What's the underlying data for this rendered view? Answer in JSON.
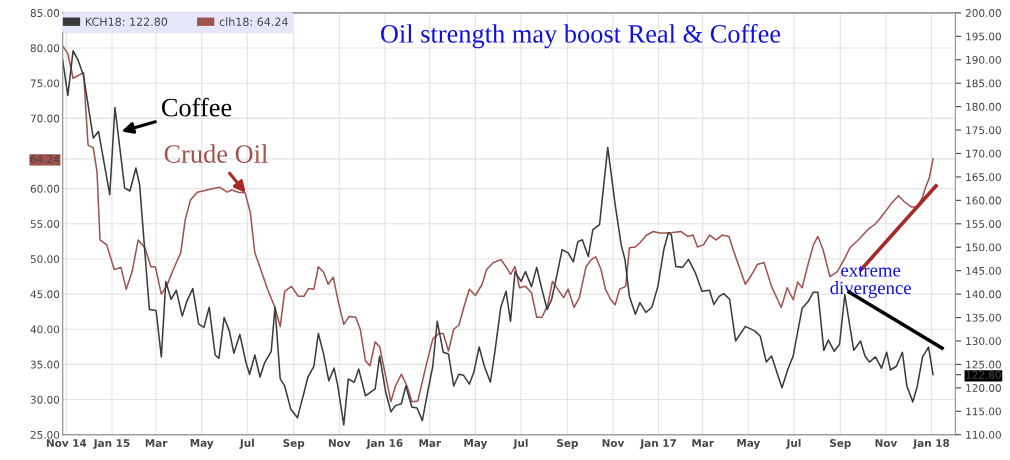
{
  "chart_data": {
    "type": "line",
    "title": "Oil strength may boost Real & Coffee",
    "annotations": [
      "Coffee",
      "Crude Oil",
      "extreme\ndivergence"
    ],
    "legend": "top left",
    "grid": true,
    "xlim": [
      "2014-10-27",
      "2018-02-02"
    ],
    "xticks": [
      {
        "value": "2014-11-01",
        "label": "Nov 14"
      },
      {
        "value": "2015-01-01",
        "label": "Jan 15"
      },
      {
        "value": "2015-03-01",
        "label": "Mar"
      },
      {
        "value": "2015-05-01",
        "label": "May"
      },
      {
        "value": "2015-07-01",
        "label": "Jul"
      },
      {
        "value": "2015-09-01",
        "label": "Sep"
      },
      {
        "value": "2015-11-01",
        "label": "Nov"
      },
      {
        "value": "2016-01-01",
        "label": "Jan 16"
      },
      {
        "value": "2016-03-01",
        "label": "Mar"
      },
      {
        "value": "2016-05-01",
        "label": "May"
      },
      {
        "value": "2016-07-01",
        "label": "Jul"
      },
      {
        "value": "2016-09-01",
        "label": "Sep"
      },
      {
        "value": "2016-11-01",
        "label": "Nov"
      },
      {
        "value": "2017-01-01",
        "label": "Jan 17"
      },
      {
        "value": "2017-03-01",
        "label": "Mar"
      },
      {
        "value": "2017-05-01",
        "label": "May"
      },
      {
        "value": "2017-07-01",
        "label": "Jul"
      },
      {
        "value": "2017-09-01",
        "label": "Sep"
      },
      {
        "value": "2017-11-01",
        "label": "Nov"
      },
      {
        "value": "2018-01-01",
        "label": "Jan 18"
      }
    ],
    "ylim": [
      25,
      85
    ],
    "yticks": [
      {
        "value": 25,
        "label": "25.00"
      },
      {
        "value": 30,
        "label": "30.00"
      },
      {
        "value": 35,
        "label": "35.00"
      },
      {
        "value": 40,
        "label": "40.00"
      },
      {
        "value": 45,
        "label": "45.00"
      },
      {
        "value": 50,
        "label": "50.00"
      },
      {
        "value": 55,
        "label": "55.00"
      },
      {
        "value": 60,
        "label": "60.00"
      },
      {
        "value": 64.24,
        "label": "64.24"
      },
      {
        "value": 70,
        "label": "70.00"
      },
      {
        "value": 75,
        "label": "75.00"
      },
      {
        "value": 80,
        "label": "80.00"
      },
      {
        "value": 85,
        "label": "85.00"
      }
    ],
    "y2lim": [
      110,
      200
    ],
    "y2ticks": [
      {
        "value": 110,
        "label": "110.00"
      },
      {
        "value": 115,
        "label": "115.00"
      },
      {
        "value": 120,
        "label": "120.00"
      },
      {
        "value": 122.8,
        "label": "122.80"
      },
      {
        "value": 125,
        "label": "125.00"
      },
      {
        "value": 130,
        "label": "130.00"
      },
      {
        "value": 135,
        "label": "135.00"
      },
      {
        "value": 140,
        "label": "140.00"
      },
      {
        "value": 145,
        "label": "145.00"
      },
      {
        "value": 150,
        "label": "150.00"
      },
      {
        "value": 155,
        "label": "155.00"
      },
      {
        "value": 160,
        "label": "160.00"
      },
      {
        "value": 165,
        "label": "165.00"
      },
      {
        "value": 170,
        "label": "170.00"
      },
      {
        "value": 175,
        "label": "175.00"
      },
      {
        "value": 180,
        "label": "180.00"
      },
      {
        "value": 185,
        "label": "185.00"
      },
      {
        "value": 190,
        "label": "190.00"
      },
      {
        "value": 195,
        "label": "195.00"
      },
      {
        "value": 200,
        "label": "200.00"
      }
    ],
    "series": [
      {
        "name": "KCH18: 122.80",
        "color": "#3a3a3a",
        "axis": "y2",
        "x": [
          "2014-10-27",
          "2014-11-03",
          "2014-11-10",
          "2014-11-17",
          "2014-11-24",
          "2014-12-07",
          "2014-12-14",
          "2014-12-29",
          "2015-01-05",
          "2015-01-18",
          "2015-01-25",
          "2015-02-02",
          "2015-02-07",
          "2015-02-20",
          "2015-03-01",
          "2015-03-08",
          "2015-03-14",
          "2015-03-21",
          "2015-03-28",
          "2015-04-05",
          "2015-04-11",
          "2015-04-19",
          "2015-04-27",
          "2015-05-04",
          "2015-05-11",
          "2015-05-19",
          "2015-05-24",
          "2015-05-31",
          "2015-06-07",
          "2015-06-13",
          "2015-06-21",
          "2015-06-29",
          "2015-07-04",
          "2015-07-11",
          "2015-07-18",
          "2015-07-24",
          "2015-08-02",
          "2015-08-07",
          "2015-08-14",
          "2015-08-20",
          "2015-08-28",
          "2015-09-06",
          "2015-09-15",
          "2015-09-20",
          "2015-09-28",
          "2015-10-04",
          "2015-10-11",
          "2015-10-18",
          "2015-10-25",
          "2015-10-30",
          "2015-11-07",
          "2015-11-13",
          "2015-11-21",
          "2015-11-27",
          "2015-12-06",
          "2015-12-19",
          "2015-12-25",
          "2016-01-02",
          "2016-01-09",
          "2016-01-15",
          "2016-01-23",
          "2016-01-29",
          "2016-02-06",
          "2016-02-13",
          "2016-02-20",
          "2016-02-28",
          "2016-03-05",
          "2016-03-11",
          "2016-03-19",
          "2016-03-26",
          "2016-04-02",
          "2016-04-09",
          "2016-04-15",
          "2016-04-23",
          "2016-04-29",
          "2016-05-06",
          "2016-05-13",
          "2016-05-21",
          "2016-05-27",
          "2016-06-04",
          "2016-06-11",
          "2016-06-17",
          "2016-06-23",
          "2016-07-01",
          "2016-07-07",
          "2016-07-15",
          "2016-07-22",
          "2016-07-29",
          "2016-08-05",
          "2016-08-11",
          "2016-08-19",
          "2016-08-25",
          "2016-09-02",
          "2016-09-09",
          "2016-09-15",
          "2016-09-21",
          "2016-09-29",
          "2016-10-05",
          "2016-10-14",
          "2016-10-25",
          "2016-11-04",
          "2016-11-12",
          "2016-11-17",
          "2016-11-23",
          "2016-12-01",
          "2016-12-07",
          "2016-12-15",
          "2016-12-23",
          "2016-12-31",
          "2017-01-08",
          "2017-01-14",
          "2017-01-18",
          "2017-01-24",
          "2017-02-02",
          "2017-02-10",
          "2017-02-19",
          "2017-02-28",
          "2017-03-10",
          "2017-03-16",
          "2017-03-23",
          "2017-03-29",
          "2017-04-06",
          "2017-04-14",
          "2017-04-27",
          "2017-05-10",
          "2017-05-17",
          "2017-05-25",
          "2017-06-01",
          "2017-06-15",
          "2017-06-23",
          "2017-06-30",
          "2017-07-12",
          "2017-07-20",
          "2017-07-27",
          "2017-08-02",
          "2017-08-10",
          "2017-08-16",
          "2017-08-24",
          "2017-08-31",
          "2017-09-07",
          "2017-09-19",
          "2017-09-28",
          "2017-10-04",
          "2017-10-10",
          "2017-10-18",
          "2017-10-26",
          "2017-11-02",
          "2017-11-07",
          "2017-11-15",
          "2017-11-23",
          "2017-11-29",
          "2017-12-07",
          "2017-12-13",
          "2017-12-20",
          "2017-12-28",
          "2018-01-03"
        ],
        "values": [
          190,
          182.4,
          191.9,
          189.8,
          186.6,
          173.3,
          174.7,
          161.2,
          179.8,
          162.6,
          162,
          166.9,
          163.3,
          136.7,
          136.5,
          126.6,
          142.7,
          138.9,
          140.8,
          135.3,
          138.4,
          141.2,
          133.6,
          132.9,
          137.2,
          127,
          126.3,
          135,
          132.1,
          127.4,
          131.4,
          125.5,
          122.9,
          127,
          122.3,
          125.3,
          127.8,
          137.2,
          121.9,
          120.4,
          115.5,
          113.6,
          119.1,
          122.3,
          124.6,
          131.6,
          127.2,
          121.5,
          124.2,
          120.4,
          112.1,
          121.9,
          121.2,
          124,
          118.3,
          119.8,
          126.8,
          119.1,
          114.9,
          116.2,
          116.6,
          120.4,
          115.9,
          115.7,
          113,
          119.8,
          124.6,
          134.2,
          127.6,
          127.2,
          120.4,
          122.9,
          122.7,
          120.8,
          123.4,
          128.7,
          124.6,
          121.2,
          127.6,
          137.2,
          140.6,
          134.2,
          144.8,
          142.7,
          144.8,
          141.6,
          145.7,
          141,
          136.7,
          138.9,
          144.8,
          149.5,
          148.8,
          146.9,
          151.2,
          151.6,
          148,
          153.7,
          154.8,
          171.3,
          159,
          150.5,
          147.4,
          139.5,
          135.7,
          138.2,
          136.1,
          137.2,
          141.6,
          149.5,
          153.1,
          152.7,
          145.9,
          145.7,
          147.4,
          144.6,
          140.6,
          140.8,
          137.8,
          139.5,
          140.1,
          138.9,
          130,
          133.1,
          132.1,
          131,
          125.5,
          126.8,
          120,
          124,
          126.8,
          137,
          138.4,
          140.4,
          140.4,
          128,
          130.2,
          127.8,
          129.3,
          139.9,
          128,
          130,
          126.8,
          125.5,
          126.6,
          124.2,
          127.6,
          123.8,
          124.6,
          127.6,
          120.4,
          117,
          120.4,
          126.6,
          128.7,
          122.8
        ]
      },
      {
        "name": "clh18: 64.24",
        "color": "#a0524f",
        "x": [
          "2014-10-27",
          "2014-11-03",
          "2014-11-10",
          "2014-11-24",
          "2014-11-30",
          "2014-12-07",
          "2014-12-12",
          "2014-12-16",
          "2014-12-25",
          "2015-01-04",
          "2015-01-13",
          "2015-01-20",
          "2015-01-28",
          "2015-02-05",
          "2015-02-14",
          "2015-02-22",
          "2015-02-28",
          "2015-03-08",
          "2015-03-15",
          "2015-03-24",
          "2015-04-03",
          "2015-04-09",
          "2015-04-16",
          "2015-04-25",
          "2015-05-08",
          "2015-05-25",
          "2015-06-04",
          "2015-06-10",
          "2015-06-19",
          "2015-06-28",
          "2015-07-05",
          "2015-07-11",
          "2015-07-19",
          "2015-07-28",
          "2015-08-07",
          "2015-08-14",
          "2015-08-20",
          "2015-08-29",
          "2015-09-07",
          "2015-09-15",
          "2015-09-21",
          "2015-09-28",
          "2015-10-04",
          "2015-10-11",
          "2015-10-17",
          "2015-10-24",
          "2015-10-30",
          "2015-11-07",
          "2015-11-14",
          "2015-11-23",
          "2015-11-29",
          "2015-12-06",
          "2015-12-12",
          "2015-12-19",
          "2015-12-25",
          "2016-01-09",
          "2016-01-15",
          "2016-01-23",
          "2016-01-31",
          "2016-02-06",
          "2016-02-14",
          "2016-02-25",
          "2016-03-05",
          "2016-03-13",
          "2016-03-19",
          "2016-03-26",
          "2016-04-02",
          "2016-04-09",
          "2016-04-16",
          "2016-04-23",
          "2016-05-01",
          "2016-05-10",
          "2016-05-16",
          "2016-05-25",
          "2016-06-04",
          "2016-06-11",
          "2016-06-17",
          "2016-06-23",
          "2016-06-29",
          "2016-07-07",
          "2016-07-15",
          "2016-07-22",
          "2016-07-29",
          "2016-08-06",
          "2016-08-12",
          "2016-08-19",
          "2016-08-27",
          "2016-09-02",
          "2016-09-10",
          "2016-09-17",
          "2016-09-26",
          "2016-10-03",
          "2016-10-09",
          "2016-10-16",
          "2016-10-22",
          "2016-10-29",
          "2016-11-04",
          "2016-11-10",
          "2016-11-18",
          "2016-11-23",
          "2016-12-01",
          "2016-12-07",
          "2016-12-16",
          "2016-12-25",
          "2017-01-02",
          "2017-01-14",
          "2017-01-31",
          "2017-02-09",
          "2017-02-16",
          "2017-02-22",
          "2017-03-02",
          "2017-03-10",
          "2017-03-19",
          "2017-03-27",
          "2017-04-05",
          "2017-04-14",
          "2017-04-27",
          "2017-05-04",
          "2017-05-13",
          "2017-05-22",
          "2017-06-01",
          "2017-06-14",
          "2017-06-22",
          "2017-06-30",
          "2017-07-06",
          "2017-07-12",
          "2017-07-19",
          "2017-07-27",
          "2017-08-02",
          "2017-08-09",
          "2017-08-18",
          "2017-08-28",
          "2017-09-08",
          "2017-09-14",
          "2017-09-25",
          "2017-10-08",
          "2017-10-17",
          "2017-10-23",
          "2017-10-31",
          "2017-11-09",
          "2017-11-18",
          "2017-11-26",
          "2017-12-05",
          "2017-12-13",
          "2017-12-20",
          "2017-12-24",
          "2017-12-29",
          "2018-01-03"
        ],
        "values": [
          80.3,
          79.2,
          75.7,
          76.5,
          66.2,
          65.8,
          62.4,
          52.7,
          52,
          48.5,
          48.8,
          45.7,
          48.2,
          52.7,
          51.6,
          48.9,
          48.9,
          45,
          46.1,
          48.5,
          50.9,
          55.6,
          58.4,
          59.5,
          59.8,
          60.2,
          59.5,
          59.8,
          59.5,
          59.4,
          56.6,
          50.9,
          48.5,
          45.7,
          43.1,
          40.4,
          45.4,
          46.1,
          44.7,
          44.7,
          45.8,
          45.7,
          48.9,
          48.1,
          46.4,
          47.4,
          44.2,
          40.7,
          41.8,
          41.7,
          40,
          35.5,
          34.8,
          38.2,
          37.5,
          29.7,
          31.9,
          33.6,
          31.8,
          29.7,
          29.8,
          34.8,
          38.6,
          39.4,
          39.4,
          36.9,
          40,
          40.6,
          43.3,
          45.7,
          44.8,
          46.4,
          48.5,
          49.5,
          49.9,
          48.9,
          47.8,
          48.9,
          45.9,
          46.1,
          45.2,
          41.7,
          41.7,
          43.5,
          46.8,
          45.7,
          44.5,
          45.7,
          43.1,
          44.5,
          48.9,
          49.9,
          50.3,
          48.5,
          45.7,
          44.2,
          43.5,
          45.7,
          46.1,
          51.6,
          51.7,
          52.3,
          53.4,
          53.9,
          53.7,
          53.7,
          53.9,
          53.2,
          53.4,
          51.7,
          52,
          53.4,
          52.7,
          53.4,
          53.2,
          50.3,
          46.4,
          47.5,
          49.2,
          49.5,
          46.1,
          43.1,
          45.9,
          44.2,
          46.7,
          45.9,
          48.9,
          52,
          53.2,
          51.3,
          47.5,
          48.2,
          50.3,
          51.6,
          52.7,
          54.2,
          54.9,
          55.6,
          56.7,
          58,
          59,
          58.1,
          57.4,
          57.4,
          58.8,
          60.2,
          61.5,
          64.24
        ]
      },
      {
        "color": "#a52a2a",
        "x": [
          "2017-09-29",
          "2018-01-07"
        ],
        "values": [
          48.5,
          60.4
        ]
      },
      {
        "color": "#000000",
        "axis": "y2",
        "x": [
          "2017-09-13",
          "2018-01-15"
        ],
        "values": [
          140.4,
          128.5
        ]
      }
    ]
  }
}
